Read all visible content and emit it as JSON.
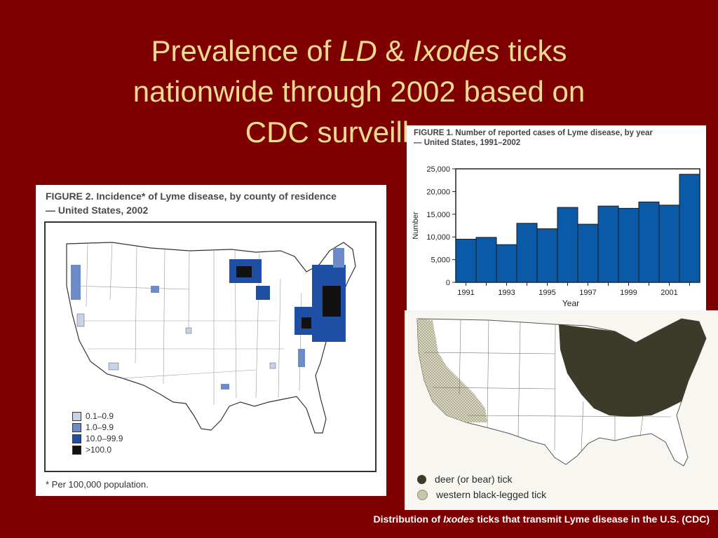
{
  "slide": {
    "title_part1": "Prevalence of ",
    "title_ld": "LD",
    "title_amp": " & ",
    "title_ixodes": "Ixodes",
    "title_part2": " ticks",
    "title_line2": "nationwide through 2002 based on",
    "title_line3": "CDC surveillance"
  },
  "incidence_map": {
    "title_line1": "FIGURE 2. Incidence* of Lyme disease, by county of residence",
    "title_line2": "— United States, 2002",
    "legend": [
      {
        "label": "0.1–0.9",
        "color": "#c8d2e8"
      },
      {
        "label": "1.0–9.9",
        "color": "#6d8bc6"
      },
      {
        "label": "10.0–99.9",
        "color": "#1f4fa5"
      },
      {
        "label": ">100.0",
        "color": "#111111"
      }
    ],
    "footnote": "* Per 100,000 population."
  },
  "chart_data": {
    "type": "bar",
    "title": "FIGURE 1. Number of reported cases of Lyme disease, by year — United States, 1991–2002",
    "title_line1": "FIGURE 1. Number of reported cases of Lyme disease, by year",
    "title_line2": "— United States, 1991–2002",
    "categories": [
      "1991",
      "1992",
      "1993",
      "1994",
      "1995",
      "1996",
      "1997",
      "1998",
      "1999",
      "2000",
      "2001",
      "2002"
    ],
    "values": [
      9500,
      9900,
      8300,
      13000,
      11800,
      16500,
      12800,
      16800,
      16300,
      17700,
      17000,
      23800
    ],
    "xtick_labels": [
      "1991",
      "1993",
      "1995",
      "1997",
      "1999",
      "2001"
    ],
    "ytick_labels": [
      "0",
      "5,000",
      "10,000",
      "15,000",
      "20,000",
      "25,000"
    ],
    "xlabel": "Year",
    "ylabel": "Number",
    "ylim": [
      0,
      25000
    ],
    "bar_color": "#0b5aa8",
    "grid": false
  },
  "tick_map": {
    "legend": [
      {
        "label": "deer (or bear) tick",
        "color": "#3c3a28"
      },
      {
        "label": "western black-legged tick",
        "color": "#c9c6ae"
      }
    ]
  },
  "caption": {
    "prefix": "Distribution of ",
    "italic": "Ixodes",
    "suffix": " ticks that transmit Lyme disease in the U.S. (CDC)"
  },
  "colors": {
    "background": "#7e0000",
    "title": "#f0dc90"
  }
}
